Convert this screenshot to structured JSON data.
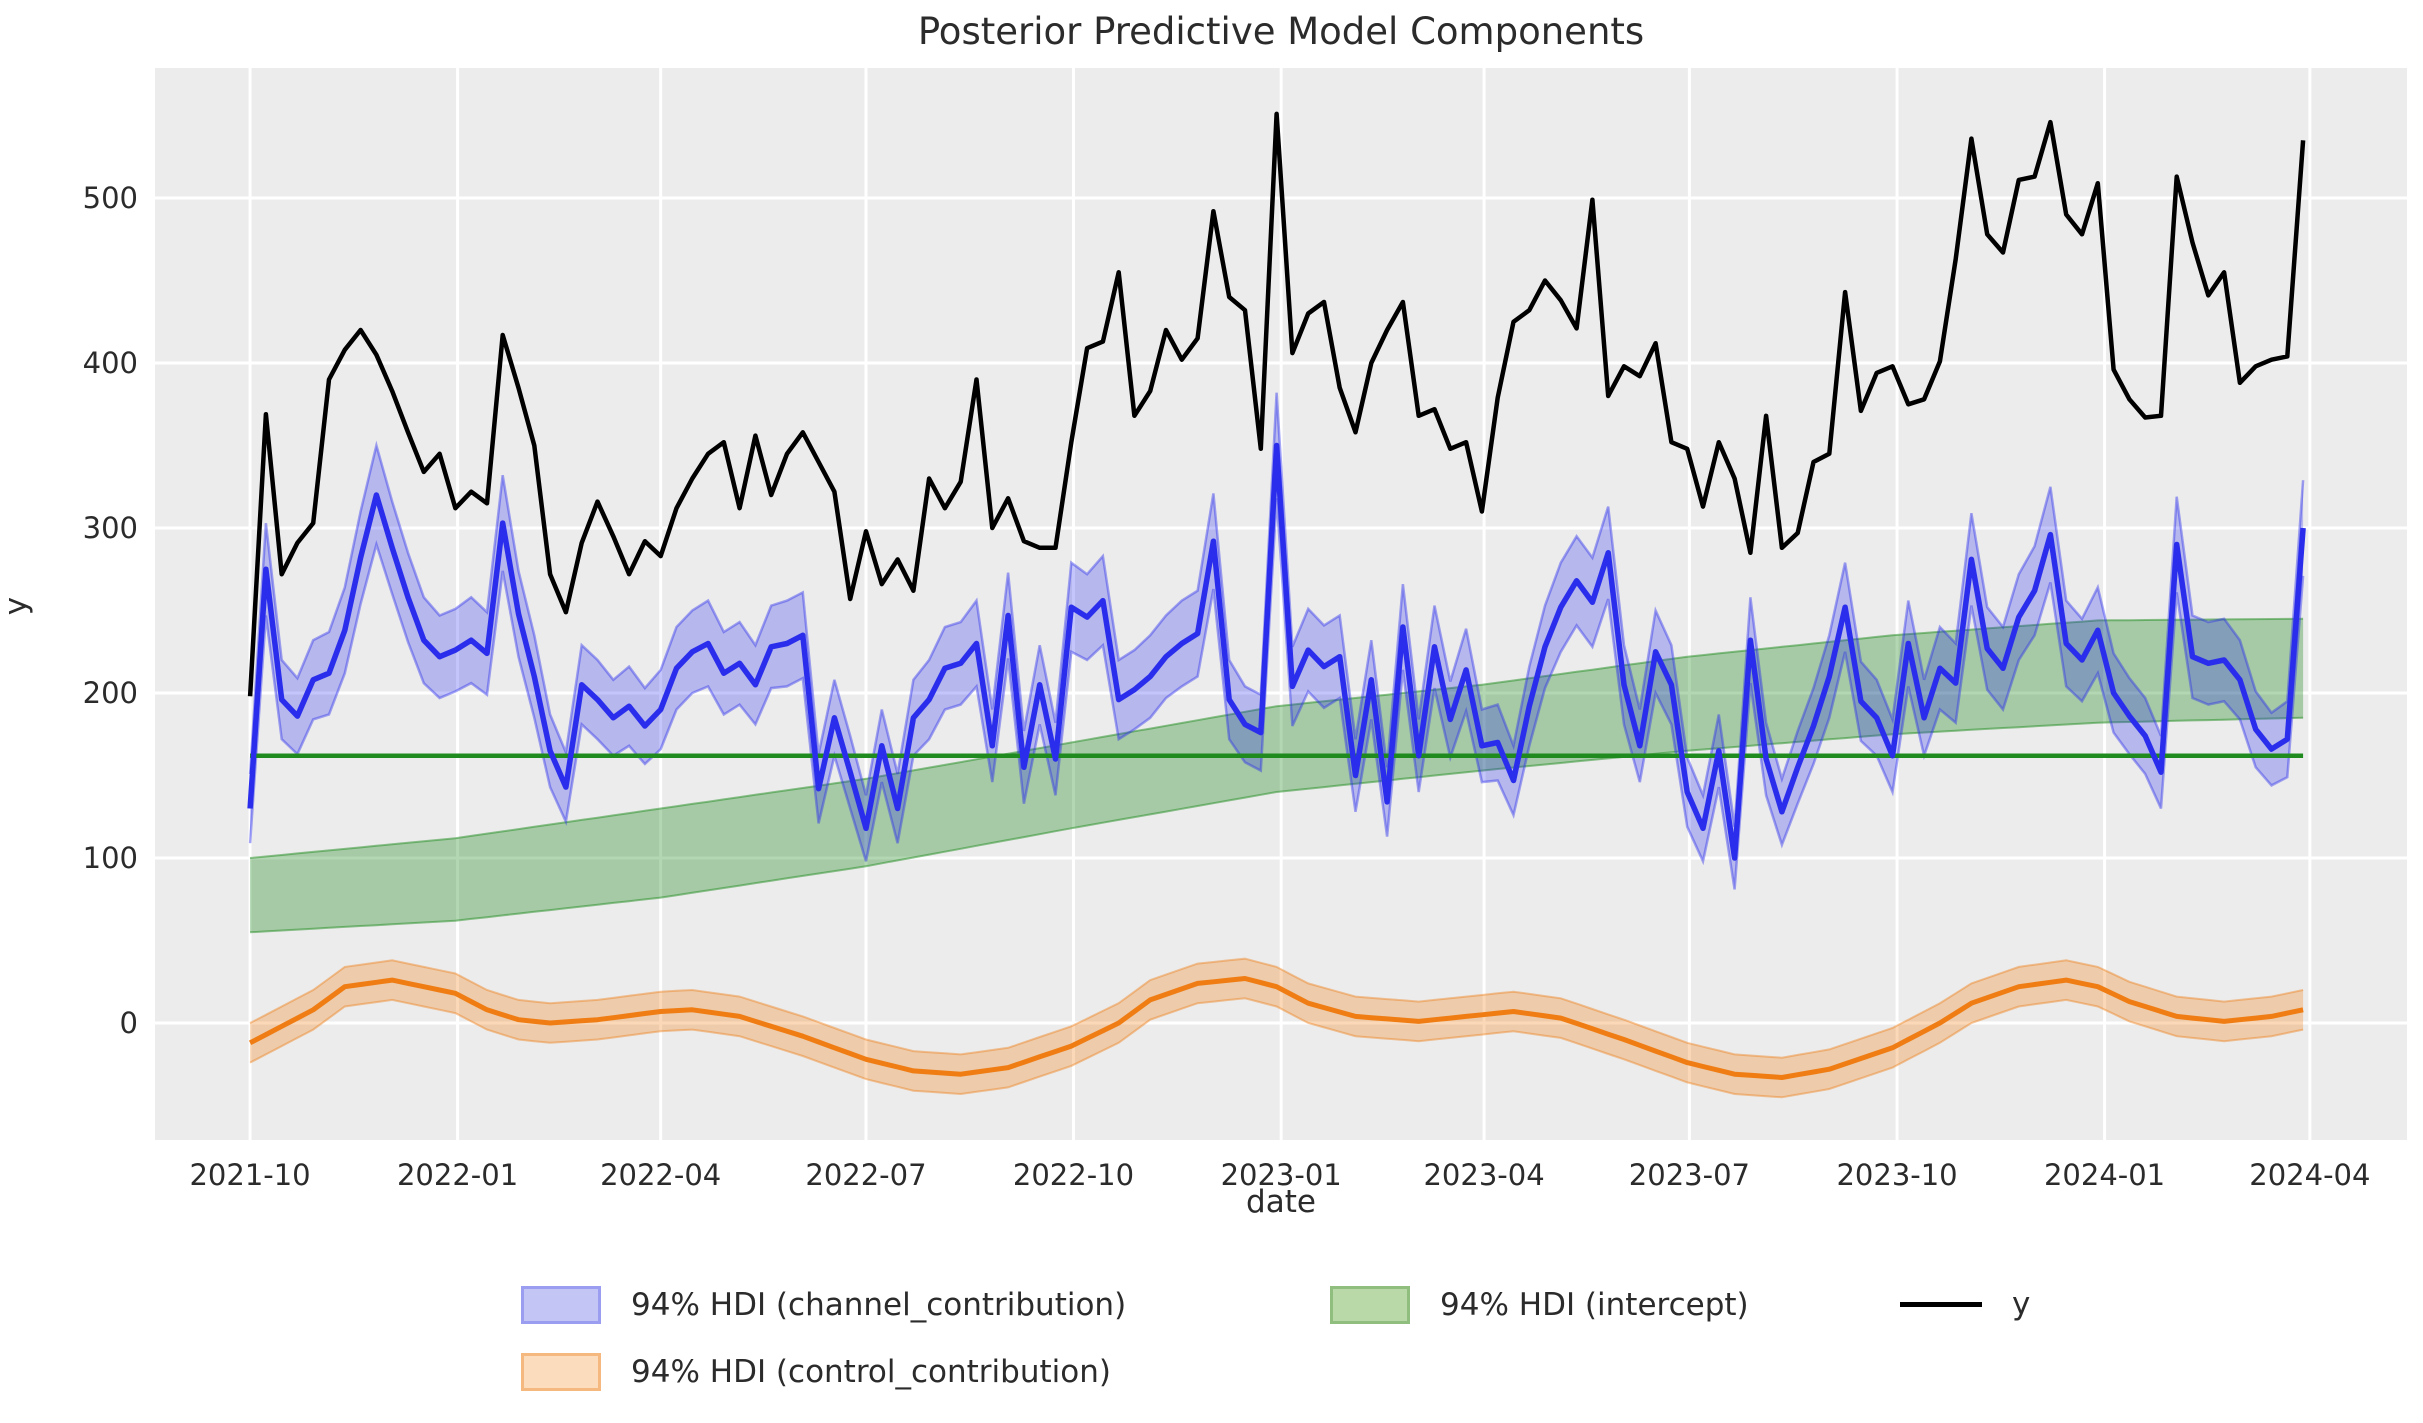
{
  "title": "Posterior Predictive Model Components",
  "xlabel": "date",
  "ylabel": "y",
  "legend": {
    "channel": "94% HDI (channel_contribution)",
    "control": "94% HDI (control_contribution)",
    "intercept": "94% HDI (intercept)",
    "y": "y"
  },
  "colors": {
    "plot_bg": "#ececec",
    "grid": "#ffffff",
    "text": "#2b2b2b",
    "y_line": "#000000",
    "channel_line": "#2a2eec",
    "channel_band_fill": "rgba(42,46,236,0.28)",
    "channel_band_edge": "rgba(42,46,236,0.42)",
    "intercept_line": "#1f8b1f",
    "intercept_band_fill": "rgba(34,139,34,0.35)",
    "intercept_band_edge": "rgba(34,139,34,0.5)",
    "control_line": "#ef7d14",
    "control_band_fill": "rgba(239,125,20,0.30)",
    "control_band_edge": "rgba(239,125,20,0.42)",
    "legend_channel_swatch": "#c3c5f5",
    "legend_channel_border": "#9b9ef0",
    "legend_control_swatch": "#fbdcbd",
    "legend_control_border": "#f5b87e",
    "legend_intercept_swatch": "#b9d9a9",
    "legend_intercept_border": "#8fbe7f"
  },
  "chart_data": {
    "type": "line",
    "x_start_date": "2021-10-01",
    "x_step_days": 7,
    "n_points": 131,
    "xlim_weeks": [
      -6.02,
      136.58
    ],
    "ylim": [
      -70.9,
      578.8
    ],
    "grid": true,
    "legend_position": "below",
    "yticks": [
      0,
      100,
      200,
      300,
      400,
      500
    ],
    "xticks": [
      {
        "label": "2021-10",
        "week": 0
      },
      {
        "label": "2022-01",
        "week": 13.14
      },
      {
        "label": "2022-04",
        "week": 26.0
      },
      {
        "label": "2022-07",
        "week": 39.0
      },
      {
        "label": "2022-10",
        "week": 52.14
      },
      {
        "label": "2023-01",
        "week": 65.29
      },
      {
        "label": "2023-04",
        "week": 78.14
      },
      {
        "label": "2023-07",
        "week": 91.14
      },
      {
        "label": "2023-10",
        "week": 104.29
      },
      {
        "label": "2024-01",
        "week": 117.43
      },
      {
        "label": "2024-04",
        "week": 130.43
      }
    ],
    "series": [
      {
        "name": "y",
        "values": [
          198,
          369,
          272,
          291,
          303,
          390,
          408,
          420,
          405,
          383,
          358,
          334,
          345,
          312,
          322,
          315,
          417,
          385,
          350,
          272,
          249,
          291,
          316,
          295,
          272,
          292,
          283,
          312,
          330,
          345,
          352,
          312,
          356,
          320,
          345,
          358,
          340,
          322,
          257,
          298,
          266,
          281,
          262,
          330,
          312,
          328,
          390,
          300,
          318,
          292,
          288,
          288,
          352,
          409,
          413,
          455,
          368,
          383,
          420,
          402,
          415,
          492,
          440,
          432,
          348,
          551,
          406,
          430,
          437,
          385,
          358,
          400,
          420,
          437,
          368,
          372,
          348,
          352,
          310,
          379,
          425,
          432,
          450,
          438,
          421,
          499,
          380,
          398,
          392,
          412,
          352,
          348,
          313,
          352,
          330,
          285,
          368,
          288,
          297,
          340,
          345,
          443,
          371,
          394,
          398,
          375,
          378,
          401,
          463,
          536,
          478,
          467,
          511,
          513,
          546,
          490,
          478,
          509,
          396,
          378,
          367,
          368,
          513,
          473,
          441,
          455,
          388,
          398,
          402,
          404,
          535
        ]
      },
      {
        "name": "channel_contribution_mean",
        "values": [
          130,
          275,
          196,
          186,
          208,
          212,
          238,
          282,
          320,
          288,
          258,
          232,
          222,
          226,
          232,
          224,
          303,
          248,
          210,
          165,
          143,
          205,
          196,
          185,
          192,
          180,
          190,
          215,
          225,
          230,
          212,
          218,
          205,
          228,
          230,
          235,
          142,
          185,
          152,
          118,
          168,
          130,
          185,
          196,
          215,
          218,
          230,
          168,
          247,
          155,
          205,
          160,
          252,
          246,
          256,
          196,
          202,
          210,
          222,
          230,
          236,
          292,
          196,
          181,
          176,
          350,
          204,
          226,
          216,
          222,
          150,
          208,
          134,
          240,
          162,
          228,
          184,
          214,
          168,
          170,
          147,
          192,
          228,
          252,
          268,
          255,
          285,
          205,
          168,
          225,
          205,
          140,
          118,
          165,
          100,
          232,
          160,
          128,
          155,
          180,
          210,
          252,
          195,
          185,
          162,
          230,
          185,
          215,
          206,
          281,
          227,
          215,
          246,
          262,
          296,
          230,
          220,
          238,
          200,
          186,
          174,
          152,
          290,
          222,
          218,
          220,
          208,
          178,
          166,
          172,
          300
        ]
      },
      {
        "name": "channel_contribution_hdi_halfwidth",
        "values": [
          21,
          28,
          24,
          23,
          24,
          25,
          26,
          28,
          30,
          28,
          27,
          26,
          25,
          25,
          26,
          25,
          29,
          26,
          25,
          22,
          21,
          24,
          24,
          23,
          24,
          23,
          24,
          25,
          25,
          26,
          25,
          25,
          24,
          25,
          26,
          26,
          21,
          23,
          22,
          20,
          22,
          21,
          23,
          24,
          25,
          25,
          26,
          22,
          26,
          22,
          24,
          22,
          27,
          26,
          27,
          24,
          24,
          25,
          25,
          26,
          26,
          29,
          24,
          23,
          23,
          32,
          24,
          25,
          25,
          25,
          22,
          24,
          21,
          26,
          22,
          25,
          23,
          25,
          22,
          23,
          21,
          24,
          25,
          27,
          27,
          27,
          28,
          24,
          22,
          25,
          24,
          21,
          20,
          22,
          19,
          26,
          22,
          20,
          22,
          23,
          25,
          27,
          24,
          23,
          22,
          26,
          23,
          25,
          24,
          28,
          25,
          25,
          26,
          27,
          29,
          26,
          25,
          26,
          24,
          23,
          23,
          22,
          29,
          25,
          25,
          25,
          24,
          23,
          22,
          23,
          29
        ]
      },
      {
        "name": "intercept_mean_line",
        "constant_value": 162
      },
      {
        "name": "intercept_hdi",
        "anchor_weeks": [
          0,
          13,
          26,
          39,
          52,
          65,
          78,
          91,
          104,
          117,
          130
        ],
        "lo": [
          55,
          62,
          76,
          95,
          118,
          140,
          153,
          165,
          175,
          182,
          185
        ],
        "hi": [
          100,
          112,
          130,
          148,
          170,
          192,
          205,
          222,
          235,
          244,
          245
        ]
      },
      {
        "name": "control_contribution_mean",
        "anchor_weeks": [
          0,
          4,
          6,
          9,
          13,
          15,
          17,
          19,
          22,
          26,
          28,
          31,
          35,
          39,
          42,
          45,
          48,
          52,
          55,
          57,
          60,
          63,
          65,
          67,
          70,
          74,
          78,
          80,
          83,
          87,
          91,
          94,
          97,
          100,
          104,
          107,
          109,
          112,
          115,
          117,
          119,
          122,
          125,
          128,
          130
        ],
        "anchor_values": [
          -12,
          8,
          22,
          26,
          18,
          8,
          2,
          0,
          2,
          7,
          8,
          4,
          -8,
          -22,
          -29,
          -31,
          -27,
          -14,
          0,
          14,
          24,
          27,
          22,
          12,
          4,
          1,
          5,
          7,
          3,
          -10,
          -24,
          -31,
          -33,
          -28,
          -15,
          0,
          12,
          22,
          26,
          22,
          13,
          4,
          1,
          4,
          8
        ],
        "hdi_halfwidth": 12
      }
    ]
  }
}
